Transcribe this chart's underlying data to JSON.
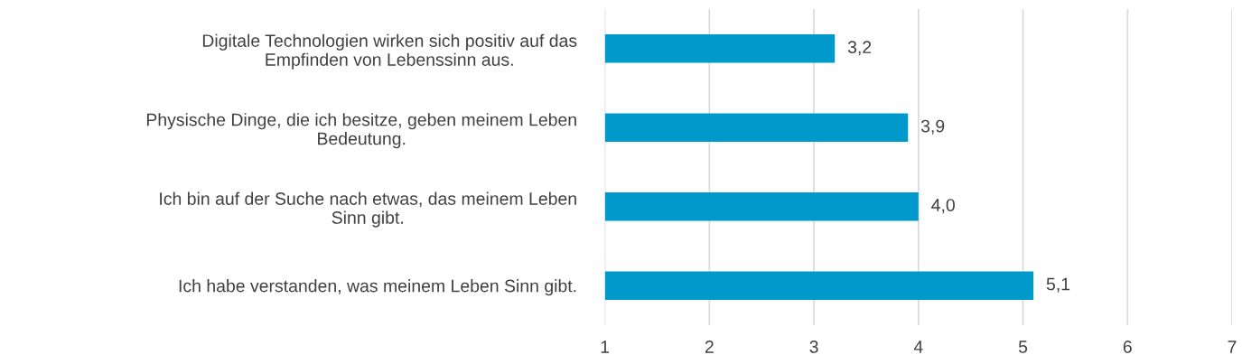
{
  "chart_data": {
    "type": "bar",
    "orientation": "horizontal",
    "categories": [
      "Digitale Technologien wirken sich positiv auf das\nEmpfinden von Lebenssinn aus.",
      "Physische Dinge, die ich besitze, geben meinem Leben\nBedeutung.",
      "Ich bin auf der Suche nach etwas, das meinem Leben\nSinn gibt.",
      "Ich habe verstanden, was meinem Leben Sinn gibt."
    ],
    "values": [
      3.2,
      3.9,
      4.0,
      5.1
    ],
    "value_labels": [
      "3,2",
      "3,9",
      "4,0",
      "5,1"
    ],
    "color": "#0099cc",
    "xlim": [
      1,
      7
    ],
    "xticks": [
      1,
      2,
      3,
      4,
      5,
      6,
      7
    ],
    "grid": "x"
  }
}
